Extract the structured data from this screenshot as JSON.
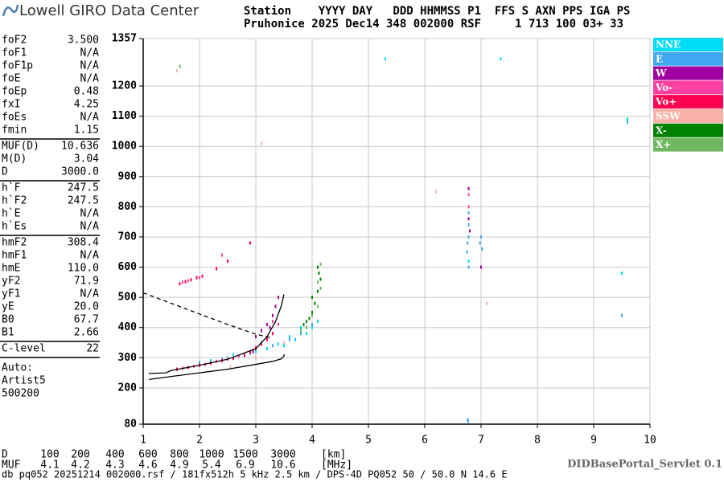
{
  "header": {
    "logo": "Lowell GIRO Data Center",
    "line1": "Station    YYYY DAY   DDD HHMMSS P1  FFS S AXN PPS IGA PS",
    "line2": "Pruhonice 2025 Dec14 348 002000 RSF     1 713 100 03+ 33"
  },
  "panel": {
    "groups": [
      [
        [
          "foF2",
          "3.500"
        ],
        [
          "foF1",
          "N/A"
        ],
        [
          "foF1p",
          "N/A"
        ],
        [
          "foE",
          "N/A"
        ],
        [
          "foEp",
          "0.48"
        ],
        [
          "fxI",
          "4.25"
        ],
        [
          "foEs",
          "N/A"
        ],
        [
          "fmin",
          "1.15"
        ]
      ],
      [
        [
          "MUF(D)",
          "10.636"
        ],
        [
          "M(D)",
          "3.04"
        ],
        [
          "D",
          "3000.0"
        ]
      ],
      [
        [
          "h`F",
          "247.5"
        ],
        [
          "h`F2",
          "247.5"
        ],
        [
          "h`E",
          "N/A"
        ],
        [
          "h`Es",
          "N/A"
        ]
      ],
      [
        [
          "hmF2",
          "308.4"
        ],
        [
          "hmF1",
          "N/A"
        ],
        [
          "hmE",
          "110.0"
        ],
        [
          "yF2",
          "71.9"
        ],
        [
          "yF1",
          "N/A"
        ],
        [
          "yE",
          "20.0"
        ],
        [
          "B0",
          "67.7"
        ],
        [
          "B1",
          "2.66"
        ]
      ],
      [
        [
          "C-level",
          "22"
        ]
      ]
    ],
    "notes": [
      "Auto:",
      "Artist5",
      "500200"
    ]
  },
  "muf_table": {
    "rows": [
      [
        "D",
        "100",
        "200",
        "400",
        "600",
        "800",
        "1000",
        "1500",
        "3000",
        "[km]"
      ],
      [
        "MUF",
        "4.1",
        "4.2",
        "4.3",
        "4.6",
        "4.9",
        "5.4",
        "6.9",
        "10.6",
        "[MHz]"
      ]
    ]
  },
  "footer": "db pq052 20251214 002000.rsf / 181fx512h 5 kHz 2.5 km / DPS-4D PQ052 50 / 50.0 N 14.6 E",
  "servlet": "DIDBasePortal_Servlet 0.1",
  "chart_data": {
    "type": "scatter",
    "xlim": [
      1,
      10
    ],
    "xticks": [
      1,
      2,
      3,
      4,
      5,
      6,
      7,
      8,
      9,
      10
    ],
    "ylim": [
      80,
      1357
    ],
    "yticks": [
      80,
      200,
      300,
      400,
      500,
      600,
      700,
      800,
      900,
      1000,
      1100,
      1200,
      1357
    ],
    "grid": true,
    "series": [
      {
        "name": "NNE",
        "color": "#00dcf8",
        "x": [
          2.2,
          2.5,
          2.8,
          3.0,
          3.2,
          3.5,
          3.7,
          3.9,
          4.0,
          4.1,
          3.1,
          3.4,
          3.6,
          6.78,
          9.5,
          9.6,
          7.35,
          5.3,
          2.6,
          3.8
        ],
        "values": [
          290,
          300,
          310,
          320,
          330,
          340,
          360,
          380,
          400,
          420,
          350,
          345,
          370,
          620,
          580,
          1090,
          1290,
          1290,
          310,
          400
        ]
      },
      {
        "name": "E",
        "color": "#40a8f0",
        "x": [
          2.0,
          2.4,
          2.9,
          3.3,
          3.6,
          3.8,
          4.0,
          6.75,
          6.76,
          6.78,
          6.78,
          6.78,
          6.78,
          6.98,
          7.0,
          7.02,
          6.76,
          6.77,
          9.5,
          9.6
        ],
        "values": [
          285,
          295,
          315,
          340,
          360,
          380,
          410,
          650,
          680,
          700,
          740,
          780,
          600,
          680,
          700,
          660,
          95,
          90,
          440,
          1080
        ]
      },
      {
        "name": "W",
        "color": "#a000a0",
        "x": [
          3.0,
          3.1,
          3.2,
          3.3,
          3.35,
          3.4,
          6.78,
          6.78,
          2.95,
          3.25,
          7.0,
          6.8
        ],
        "values": [
          370,
          390,
          410,
          440,
          470,
          500,
          860,
          760,
          320,
          400,
          600,
          720
        ]
      },
      {
        "name": "Vo-",
        "color": "#ff40a0",
        "x": [
          1.7,
          1.9,
          2.1,
          2.3,
          2.5,
          2.7,
          3.0,
          3.2,
          3.4,
          1.7,
          2.0,
          2.4,
          1.8,
          3.3,
          6.78,
          6.78
        ],
        "values": [
          265,
          272,
          278,
          288,
          295,
          305,
          335,
          365,
          410,
          550,
          565,
          640,
          555,
          420,
          840,
          800
        ]
      },
      {
        "name": "Vo+",
        "color": "#ff0050",
        "x": [
          1.6,
          1.8,
          2.0,
          2.2,
          2.4,
          2.6,
          2.8,
          2.9,
          3.0,
          3.1,
          3.2,
          3.3,
          1.65,
          1.75,
          1.85,
          1.95,
          2.05,
          2.3,
          2.5,
          2.9
        ],
        "values": [
          262,
          268,
          275,
          282,
          290,
          298,
          308,
          318,
          330,
          345,
          360,
          380,
          545,
          552,
          558,
          565,
          570,
          595,
          620,
          680
        ]
      },
      {
        "name": "SSW",
        "color": "#f8b0a8",
        "x": [
          1.6,
          2.55,
          3.0,
          3.5,
          7.1,
          6.2,
          3.1
        ],
        "values": [
          1250,
          270,
          300,
          350,
          480,
          850,
          1010
        ]
      },
      {
        "name": "X-",
        "color": "#008000",
        "x": [
          3.9,
          4.0,
          4.05,
          4.1,
          4.15,
          4.1,
          3.95,
          4.0,
          3.85,
          4.12
        ],
        "values": [
          420,
          450,
          480,
          520,
          560,
          600,
          430,
          500,
          410,
          580
        ]
      },
      {
        "name": "X+",
        "color": "#70b860",
        "x": [
          3.9,
          4.0,
          4.1,
          4.15,
          4.1,
          4.15,
          3.8,
          1.65
        ],
        "values": [
          400,
          440,
          470,
          530,
          550,
          610,
          390,
          1265
        ]
      }
    ],
    "curves": [
      {
        "x": [
          1.1,
          1.4,
          1.5,
          2.0,
          2.5,
          3.0,
          3.2,
          3.35,
          3.45,
          3.5
        ],
        "y": [
          248,
          250,
          258,
          275,
          295,
          330,
          370,
          420,
          470,
          510
        ],
        "dashed": false
      },
      {
        "x": [
          1.1,
          1.5,
          2.0,
          2.5,
          3.0,
          3.3,
          3.45,
          3.5,
          3.5
        ],
        "y": [
          228,
          238,
          250,
          262,
          278,
          288,
          296,
          305,
          312
        ],
        "dashed": false
      },
      {
        "x": [
          1.0,
          1.5,
          2.0,
          2.5,
          3.0,
          3.3
        ],
        "y": [
          515,
          480,
          445,
          410,
          378,
          365
        ],
        "dashed": true
      }
    ]
  }
}
